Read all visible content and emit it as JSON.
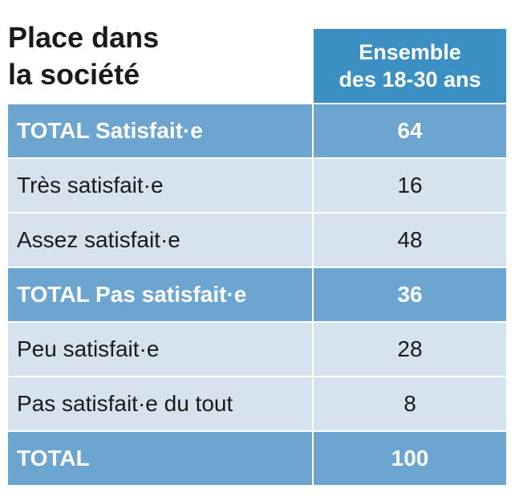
{
  "title": {
    "line1": "Place dans",
    "line2": "la société"
  },
  "column_header": {
    "line1": "Ensemble",
    "line2": "des 18-30 ans"
  },
  "colors": {
    "header_bg": "#3c8fc3",
    "total_row_bg": "#6ca5cf",
    "sub_row_bg": "#d5e3ee"
  },
  "chart_data": {
    "type": "table",
    "title": "Place dans la société",
    "columns": [
      "Ensemble des 18-30 ans"
    ],
    "rows": [
      {
        "label": "TOTAL Satisfait·e",
        "value": "64",
        "kind": "total"
      },
      {
        "label": "Très satisfait·e",
        "value": "16",
        "kind": "sub"
      },
      {
        "label": "Assez satisfait·e",
        "value": "48",
        "kind": "sub"
      },
      {
        "label": "TOTAL Pas satisfait·e",
        "value": "36",
        "kind": "total"
      },
      {
        "label": "Peu satisfait·e",
        "value": "28",
        "kind": "sub"
      },
      {
        "label": "Pas satisfait·e du tout",
        "value": "8",
        "kind": "sub"
      },
      {
        "label": "TOTAL",
        "value": "100",
        "kind": "total"
      }
    ]
  }
}
